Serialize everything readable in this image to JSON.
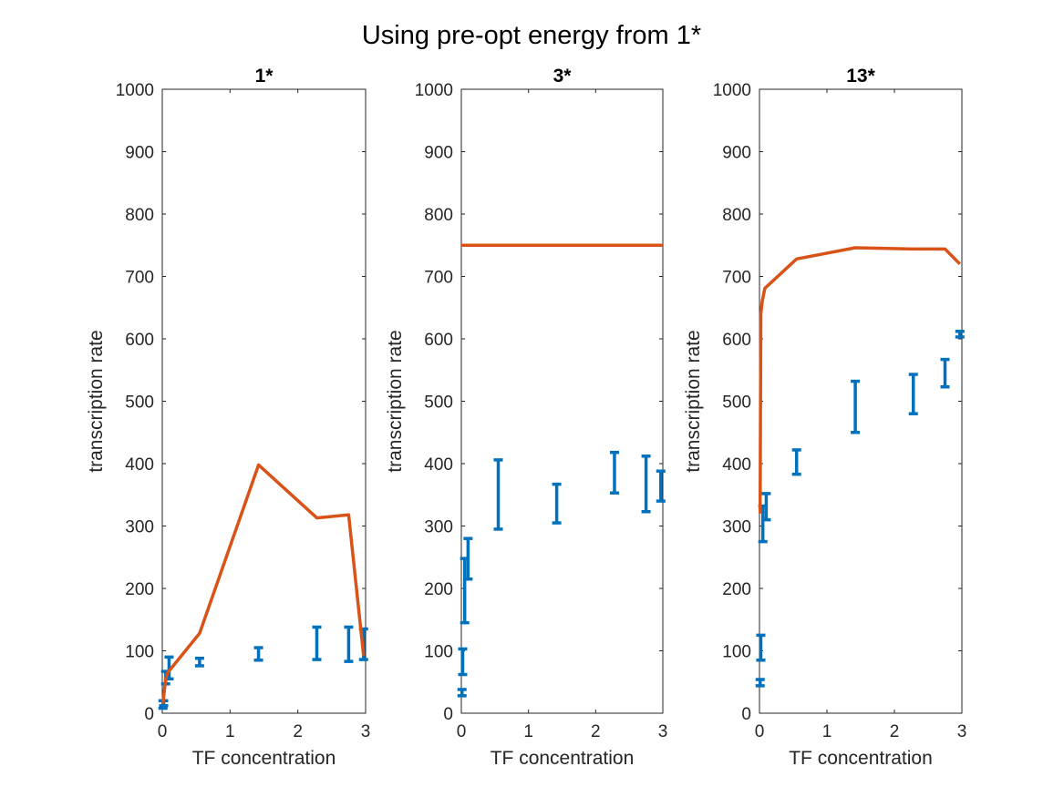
{
  "suptitle": "Using pre-opt energy from 1*",
  "colors": {
    "data": "#0072BD",
    "model": "#D95319",
    "axis": "#262626"
  },
  "chart_data": [
    {
      "type": "line",
      "title": "1*",
      "xlabel": "TF concentration",
      "ylabel": "transcription rate",
      "xlim": [
        0,
        3
      ],
      "ylim": [
        0,
        1000
      ],
      "xticks": [
        "0",
        "1",
        "2",
        "3"
      ],
      "yticks": [
        "0",
        "100",
        "200",
        "300",
        "400",
        "500",
        "600",
        "700",
        "800",
        "900",
        "1000"
      ],
      "series": [
        {
          "name": "model",
          "type": "line",
          "x": [
            0.01,
            0.05,
            0.08,
            0.55,
            1.42,
            2.28,
            2.75,
            2.97
          ],
          "y": [
            15,
            55,
            65,
            128,
            398,
            313,
            318,
            92
          ]
        },
        {
          "name": "data",
          "type": "errorbar",
          "x": [
            0.01,
            0.02,
            0.05,
            0.1,
            0.55,
            1.42,
            2.28,
            2.75,
            2.97
          ],
          "low": [
            8,
            12,
            47,
            55,
            76,
            85,
            86,
            83,
            86
          ],
          "high": [
            20,
            20,
            67,
            90,
            88,
            105,
            138,
            138,
            135
          ]
        }
      ]
    },
    {
      "type": "line",
      "title": "3*",
      "xlabel": "TF concentration",
      "ylabel": "transcription rate",
      "xlim": [
        0,
        3
      ],
      "ylim": [
        0,
        1000
      ],
      "xticks": [
        "0",
        "1",
        "2",
        "3"
      ],
      "yticks": [
        "0",
        "100",
        "200",
        "300",
        "400",
        "500",
        "600",
        "700",
        "800",
        "900",
        "1000"
      ],
      "series": [
        {
          "name": "model",
          "type": "line",
          "x": [
            0,
            3
          ],
          "y": [
            750,
            750
          ]
        },
        {
          "name": "data",
          "type": "errorbar",
          "x": [
            0.01,
            0.02,
            0.05,
            0.1,
            0.55,
            1.42,
            2.28,
            2.75,
            2.97
          ],
          "low": [
            28,
            62,
            145,
            215,
            295,
            305,
            353,
            323,
            340
          ],
          "high": [
            38,
            103,
            248,
            280,
            406,
            367,
            418,
            412,
            388
          ]
        }
      ]
    },
    {
      "type": "line",
      "title": "13*",
      "xlabel": "TF concentration",
      "ylabel": "transcription rate",
      "xlim": [
        0,
        3
      ],
      "ylim": [
        0,
        1000
      ],
      "xticks": [
        "0",
        "1",
        "2",
        "3"
      ],
      "yticks": [
        "0",
        "100",
        "200",
        "300",
        "400",
        "500",
        "600",
        "700",
        "800",
        "900",
        "1000"
      ],
      "series": [
        {
          "name": "model",
          "type": "line",
          "x": [
            0.01,
            0.02,
            0.04,
            0.08,
            0.55,
            1.42,
            2.28,
            2.75,
            2.97
          ],
          "y": [
            320,
            640,
            660,
            681,
            728,
            746,
            744,
            744,
            720
          ]
        },
        {
          "name": "data",
          "type": "errorbar",
          "x": [
            0.01,
            0.02,
            0.05,
            0.1,
            0.55,
            1.42,
            2.28,
            2.75,
            2.97
          ],
          "low": [
            44,
            85,
            275,
            310,
            383,
            450,
            480,
            523,
            603
          ],
          "high": [
            54,
            125,
            332,
            352,
            422,
            532,
            543,
            567,
            612
          ]
        }
      ]
    }
  ]
}
